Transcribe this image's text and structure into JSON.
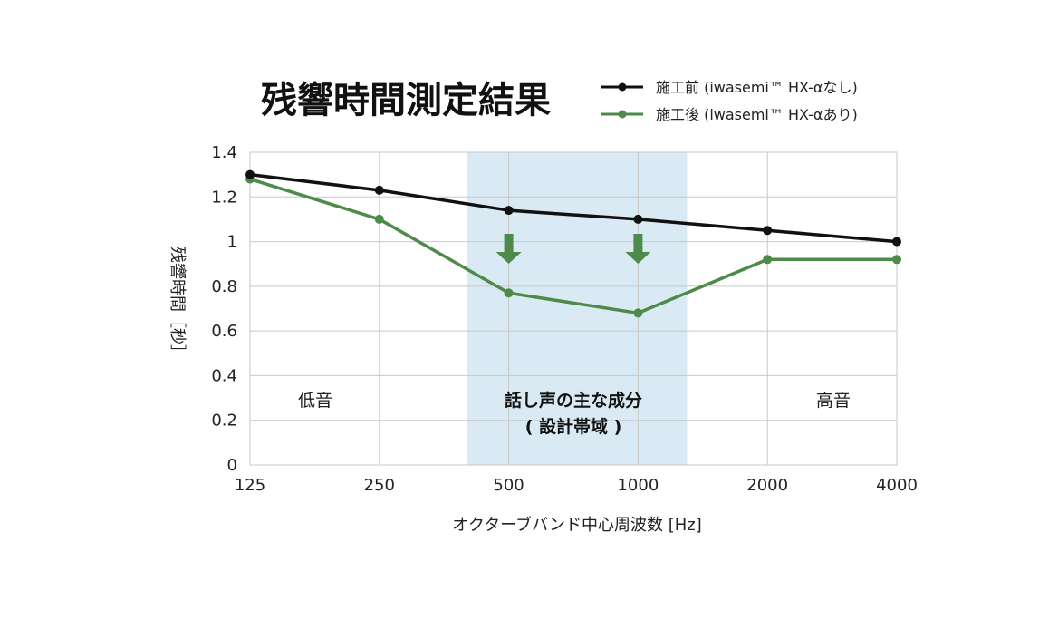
{
  "chart_data": {
    "type": "line",
    "title": "残響時間測定結果",
    "categories": [
      "125",
      "250",
      "500",
      "1000",
      "2000",
      "4000"
    ],
    "series": [
      {
        "name": "施工前 (iwasemi™ HX-αなし)",
        "color": "#111111",
        "values": [
          1.3,
          1.23,
          1.14,
          1.1,
          1.05,
          1.0
        ]
      },
      {
        "name": "施工後 (iwasemi™ HX-αあり)",
        "color": "#4e8a4a",
        "values": [
          1.28,
          1.1,
          0.77,
          0.68,
          0.92,
          0.92
        ]
      }
    ],
    "xlabel": "オクターブバンド中心周波数 [Hz]",
    "ylabel": "残響時間［秒］",
    "ylim": [
      0,
      1.4
    ],
    "yticks": [
      "0",
      "0.2",
      "0.4",
      "0.6",
      "0.8",
      "1",
      "1.2",
      "1.4"
    ],
    "grid": true,
    "legend": "top-right",
    "highlight_band": {
      "from": 400,
      "to": 1300,
      "color": "#daeaf4"
    },
    "annotations": {
      "low": "低音",
      "speech_line1": "話し声の主な成分",
      "speech_line2": "( 設計帯域 )",
      "high": "高音"
    },
    "arrows_at": [
      "500",
      "1000"
    ],
    "arrow_color": "#4e8a4a"
  }
}
